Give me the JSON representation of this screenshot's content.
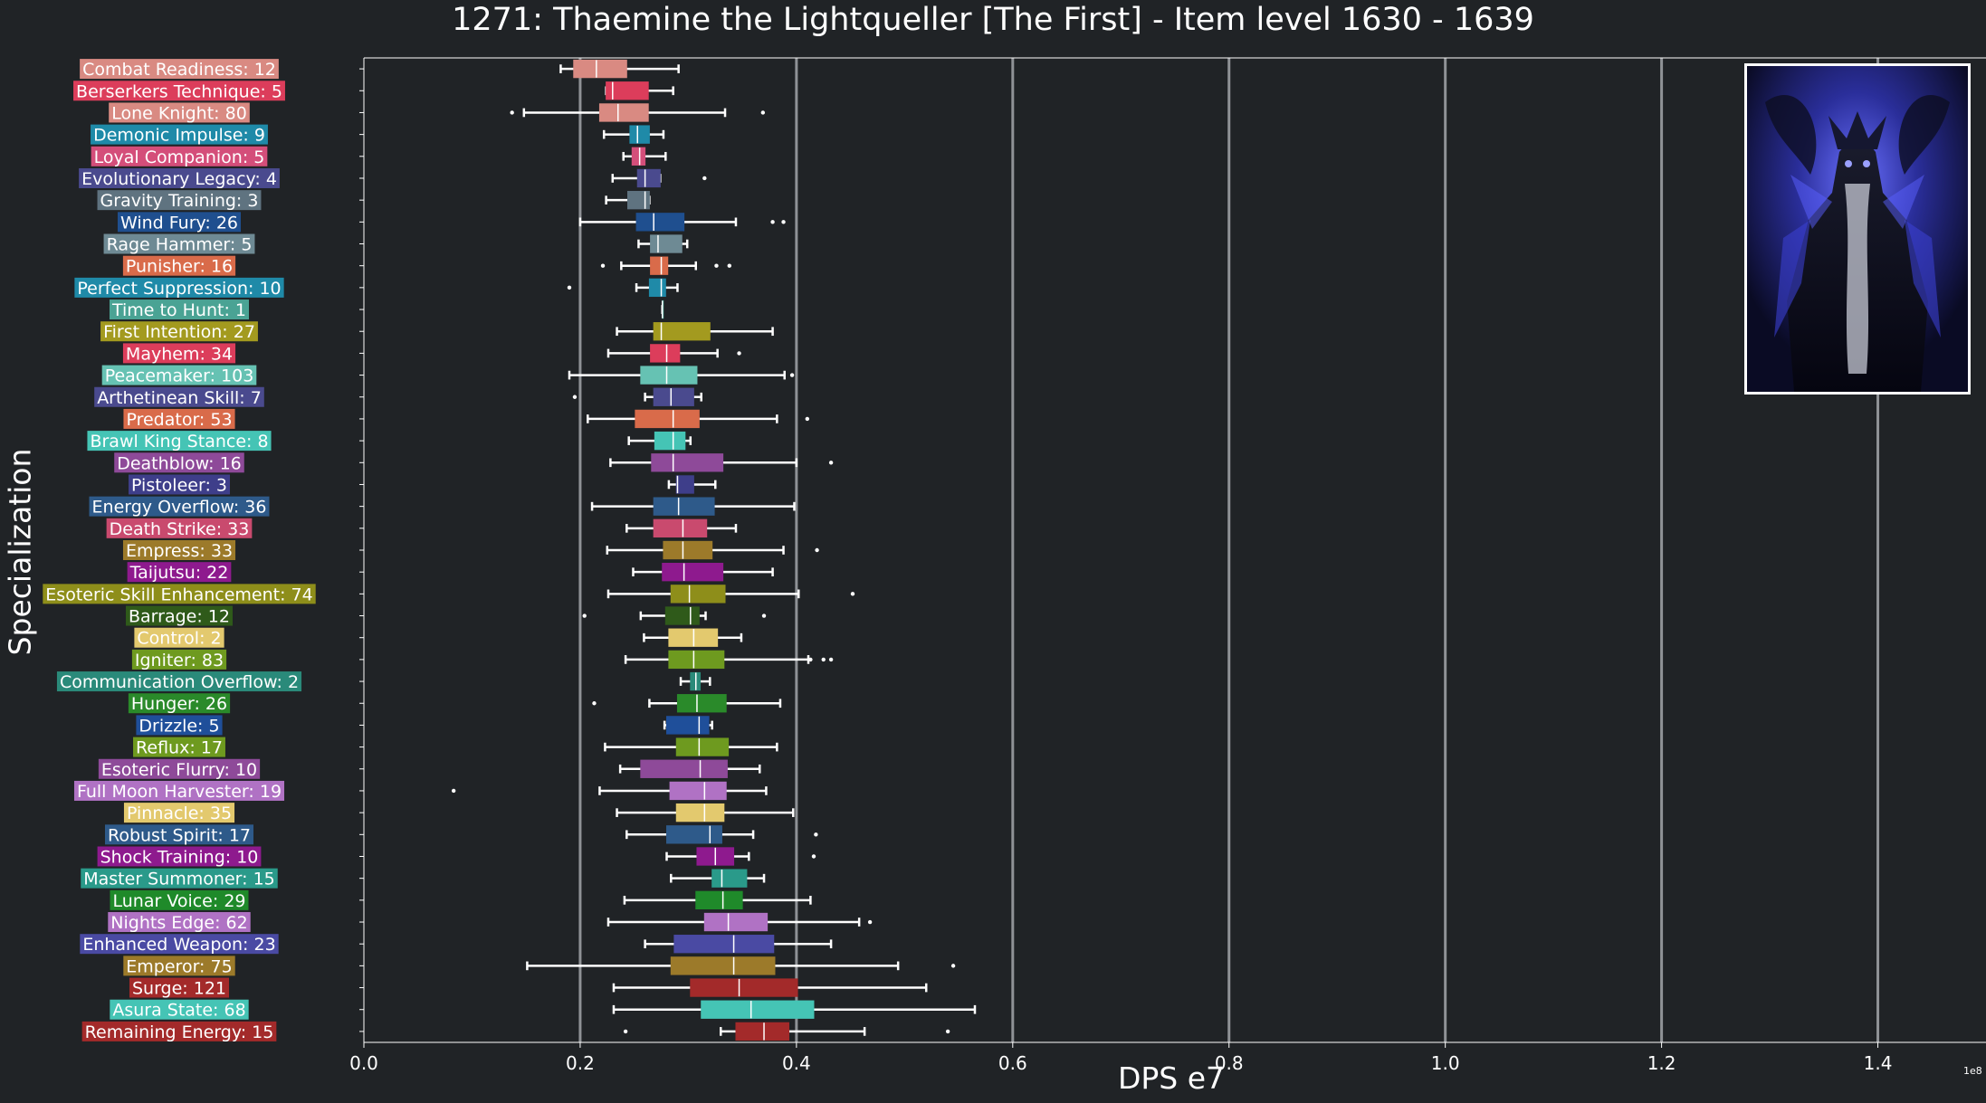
{
  "chart_data": {
    "type": "box",
    "title": "1271: Thaemine the Lightqueller [The First] - Item level 1630 - 1639",
    "xlabel": "DPS e7",
    "ylabel": "Specialization",
    "x_offset_text": "1e8",
    "xlim": [
      0.0,
      1.5
    ],
    "xticks": [
      0.0,
      0.2,
      0.4,
      0.6,
      0.8,
      1.0,
      1.2,
      1.4
    ],
    "xtick_labels": [
      "0.0",
      "0.2",
      "0.4",
      "0.6",
      "0.8",
      "1.0",
      "1.2",
      "1.4"
    ],
    "vertical_grid": true,
    "series": [
      {
        "label": "Combat Readiness: 12",
        "color": "#d98a82",
        "whisker_low": 0.182,
        "q1": 0.194,
        "median": 0.215,
        "q3": 0.243,
        "whisker_high": 0.291,
        "outliers": []
      },
      {
        "label": "Berserkers Technique: 5",
        "color": "#dc3d5b",
        "whisker_low": 0.224,
        "q1": 0.224,
        "median": 0.23,
        "q3": 0.263,
        "whisker_high": 0.286,
        "outliers": []
      },
      {
        "label": "Lone Knight: 80",
        "color": "#d98a82",
        "whisker_low": 0.148,
        "q1": 0.218,
        "median": 0.235,
        "q3": 0.263,
        "whisker_high": 0.334,
        "outliers": [
          0.137,
          0.369
        ]
      },
      {
        "label": "Demonic Impulse: 9",
        "color": "#1f8aa8",
        "whisker_low": 0.222,
        "q1": 0.246,
        "median": 0.253,
        "q3": 0.264,
        "whisker_high": 0.277,
        "outliers": []
      },
      {
        "label": "Loyal Companion: 5",
        "color": "#d44e7a",
        "whisker_low": 0.24,
        "q1": 0.248,
        "median": 0.255,
        "q3": 0.26,
        "whisker_high": 0.279,
        "outliers": []
      },
      {
        "label": "Evolutionary Legacy: 4",
        "color": "#4a4a8e",
        "whisker_low": 0.23,
        "q1": 0.253,
        "median": 0.26,
        "q3": 0.274,
        "whisker_high": 0.274,
        "outliers": [
          0.315
        ]
      },
      {
        "label": "Gravity Training: 3",
        "color": "#5f7380",
        "whisker_low": 0.224,
        "q1": 0.244,
        "median": 0.26,
        "q3": 0.264,
        "whisker_high": 0.264,
        "outliers": []
      },
      {
        "label": "Wind Fury: 26",
        "color": "#1f4f8f",
        "whisker_low": 0.2,
        "q1": 0.252,
        "median": 0.268,
        "q3": 0.296,
        "whisker_high": 0.344,
        "outliers": [
          0.378,
          0.388
        ]
      },
      {
        "label": "Rage Hammer: 5",
        "color": "#6e8a94",
        "whisker_low": 0.254,
        "q1": 0.265,
        "median": 0.272,
        "q3": 0.294,
        "whisker_high": 0.299,
        "outliers": []
      },
      {
        "label": "Punisher: 16",
        "color": "#d96b4a",
        "whisker_low": 0.238,
        "q1": 0.265,
        "median": 0.275,
        "q3": 0.281,
        "whisker_high": 0.307,
        "outliers": [
          0.221,
          0.326,
          0.338
        ]
      },
      {
        "label": "Perfect Suppression: 10",
        "color": "#1f8aa8",
        "whisker_low": 0.252,
        "q1": 0.264,
        "median": 0.275,
        "q3": 0.279,
        "whisker_high": 0.29,
        "outliers": [
          0.19
        ]
      },
      {
        "label": "Time to Hunt: 1",
        "color": "#4aa394",
        "whisker_low": 0.276,
        "q1": 0.276,
        "median": 0.276,
        "q3": 0.276,
        "whisker_high": 0.276,
        "outliers": []
      },
      {
        "label": "First Intention: 27",
        "color": "#a39a1f",
        "whisker_low": 0.234,
        "q1": 0.268,
        "median": 0.275,
        "q3": 0.32,
        "whisker_high": 0.378,
        "outliers": []
      },
      {
        "label": "Mayhem: 34",
        "color": "#dc3d5b",
        "whisker_low": 0.226,
        "q1": 0.265,
        "median": 0.28,
        "q3": 0.292,
        "whisker_high": 0.327,
        "outliers": [
          0.347
        ]
      },
      {
        "label": "Peacemaker: 103",
        "color": "#66c2b3",
        "whisker_low": 0.19,
        "q1": 0.256,
        "median": 0.28,
        "q3": 0.308,
        "whisker_high": 0.389,
        "outliers": [
          0.396
        ]
      },
      {
        "label": "Arthetinean Skill: 7",
        "color": "#4a4a8e",
        "whisker_low": 0.26,
        "q1": 0.268,
        "median": 0.284,
        "q3": 0.305,
        "whisker_high": 0.312,
        "outliers": [
          0.195
        ]
      },
      {
        "label": "Predator: 53",
        "color": "#d96b4a",
        "whisker_low": 0.207,
        "q1": 0.251,
        "median": 0.286,
        "q3": 0.31,
        "whisker_high": 0.382,
        "outliers": [
          0.41
        ]
      },
      {
        "label": "Brawl King Stance: 8",
        "color": "#45c4b5",
        "whisker_low": 0.245,
        "q1": 0.269,
        "median": 0.286,
        "q3": 0.297,
        "whisker_high": 0.302,
        "outliers": []
      },
      {
        "label": "Deathblow: 16",
        "color": "#8e4a99",
        "whisker_low": 0.228,
        "q1": 0.266,
        "median": 0.286,
        "q3": 0.332,
        "whisker_high": 0.4,
        "outliers": [
          0.432
        ]
      },
      {
        "label": "Pistoleer: 3",
        "color": "#3e3e8a",
        "whisker_low": 0.282,
        "q1": 0.289,
        "median": 0.29,
        "q3": 0.305,
        "whisker_high": 0.325,
        "outliers": []
      },
      {
        "label": "Energy Overflow: 36",
        "color": "#2e5a8a",
        "whisker_low": 0.211,
        "q1": 0.268,
        "median": 0.291,
        "q3": 0.324,
        "whisker_high": 0.398,
        "outliers": []
      },
      {
        "label": "Death Strike: 33",
        "color": "#c94a6e",
        "whisker_low": 0.243,
        "q1": 0.268,
        "median": 0.295,
        "q3": 0.317,
        "whisker_high": 0.344,
        "outliers": []
      },
      {
        "label": "Empress: 33",
        "color": "#9c7a2a",
        "whisker_low": 0.225,
        "q1": 0.277,
        "median": 0.295,
        "q3": 0.322,
        "whisker_high": 0.388,
        "outliers": [
          0.419
        ]
      },
      {
        "label": "Taijutsu: 22",
        "color": "#8e1a8e",
        "whisker_low": 0.249,
        "q1": 0.276,
        "median": 0.296,
        "q3": 0.332,
        "whisker_high": 0.378,
        "outliers": []
      },
      {
        "label": "Esoteric Skill Enhancement: 74",
        "color": "#8e8e1a",
        "whisker_low": 0.226,
        "q1": 0.284,
        "median": 0.301,
        "q3": 0.334,
        "whisker_high": 0.402,
        "outliers": [
          0.452
        ]
      },
      {
        "label": "Barrage: 12",
        "color": "#2f5a1a",
        "whisker_low": 0.256,
        "q1": 0.279,
        "median": 0.302,
        "q3": 0.31,
        "whisker_high": 0.316,
        "outliers": [
          0.204,
          0.37
        ]
      },
      {
        "label": "Control: 2",
        "color": "#e3c96e",
        "whisker_low": 0.259,
        "q1": 0.282,
        "median": 0.305,
        "q3": 0.327,
        "whisker_high": 0.349,
        "outliers": []
      },
      {
        "label": "Igniter: 83",
        "color": "#6e9a1f",
        "whisker_low": 0.242,
        "q1": 0.282,
        "median": 0.305,
        "q3": 0.333,
        "whisker_high": 0.411,
        "outliers": [
          0.413,
          0.425,
          0.432
        ]
      },
      {
        "label": "Communication Overflow: 2",
        "color": "#2a8a7a",
        "whisker_low": 0.293,
        "q1": 0.302,
        "median": 0.307,
        "q3": 0.311,
        "whisker_high": 0.32,
        "outliers": []
      },
      {
        "label": "Hunger: 26",
        "color": "#2a8a2a",
        "whisker_low": 0.264,
        "q1": 0.29,
        "median": 0.308,
        "q3": 0.335,
        "whisker_high": 0.385,
        "outliers": [
          0.213
        ]
      },
      {
        "label": "Drizzle: 5",
        "color": "#1f4f9a",
        "whisker_low": 0.278,
        "q1": 0.28,
        "median": 0.31,
        "q3": 0.319,
        "whisker_high": 0.322,
        "outliers": []
      },
      {
        "label": "Reflux: 17",
        "color": "#6e9a1f",
        "whisker_low": 0.223,
        "q1": 0.289,
        "median": 0.31,
        "q3": 0.337,
        "whisker_high": 0.382,
        "outliers": []
      },
      {
        "label": "Esoteric Flurry: 10",
        "color": "#8e4a99",
        "whisker_low": 0.237,
        "q1": 0.256,
        "median": 0.311,
        "q3": 0.336,
        "whisker_high": 0.366,
        "outliers": []
      },
      {
        "label": "Full Moon Harvester: 19",
        "color": "#b072c4",
        "whisker_low": 0.218,
        "q1": 0.283,
        "median": 0.315,
        "q3": 0.335,
        "whisker_high": 0.372,
        "outliers": [
          0.083
        ]
      },
      {
        "label": "Pinnacle: 35",
        "color": "#e3c96e",
        "whisker_low": 0.234,
        "q1": 0.289,
        "median": 0.315,
        "q3": 0.333,
        "whisker_high": 0.397,
        "outliers": []
      },
      {
        "label": "Robust Spirit: 17",
        "color": "#2e5a8a",
        "whisker_low": 0.243,
        "q1": 0.28,
        "median": 0.32,
        "q3": 0.331,
        "whisker_high": 0.36,
        "outliers": [
          0.418
        ]
      },
      {
        "label": "Shock Training: 10",
        "color": "#8e1a8e",
        "whisker_low": 0.28,
        "q1": 0.308,
        "median": 0.325,
        "q3": 0.342,
        "whisker_high": 0.356,
        "outliers": [
          0.416
        ]
      },
      {
        "label": "Master Summoner: 15",
        "color": "#2a9a8a",
        "whisker_low": 0.284,
        "q1": 0.322,
        "median": 0.331,
        "q3": 0.354,
        "whisker_high": 0.37,
        "outliers": []
      },
      {
        "label": "Lunar Voice: 29",
        "color": "#1f8a2a",
        "whisker_low": 0.241,
        "q1": 0.307,
        "median": 0.332,
        "q3": 0.35,
        "whisker_high": 0.413,
        "outliers": []
      },
      {
        "label": "Nights Edge: 62",
        "color": "#b072c4",
        "whisker_low": 0.226,
        "q1": 0.315,
        "median": 0.337,
        "q3": 0.373,
        "whisker_high": 0.458,
        "outliers": [
          0.468
        ]
      },
      {
        "label": "Enhanced Weapon: 23",
        "color": "#4a4aa3",
        "whisker_low": 0.26,
        "q1": 0.287,
        "median": 0.342,
        "q3": 0.379,
        "whisker_high": 0.432,
        "outliers": []
      },
      {
        "label": "Emperor: 75",
        "color": "#9c7a2a",
        "whisker_low": 0.151,
        "q1": 0.284,
        "median": 0.342,
        "q3": 0.38,
        "whisker_high": 0.494,
        "outliers": [
          0.545
        ]
      },
      {
        "label": "Surge: 121",
        "color": "#a32a2a",
        "whisker_low": 0.231,
        "q1": 0.302,
        "median": 0.347,
        "q3": 0.401,
        "whisker_high": 0.52,
        "outliers": []
      },
      {
        "label": "Asura State: 68",
        "color": "#45c4b5",
        "whisker_low": 0.231,
        "q1": 0.312,
        "median": 0.358,
        "q3": 0.416,
        "whisker_high": 0.565,
        "outliers": []
      },
      {
        "label": "Remaining Energy: 15",
        "color": "#a32a2a",
        "whisker_low": 0.33,
        "q1": 0.344,
        "median": 0.37,
        "q3": 0.393,
        "whisker_high": 0.463,
        "outliers": [
          0.242,
          0.54
        ]
      }
    ]
  }
}
